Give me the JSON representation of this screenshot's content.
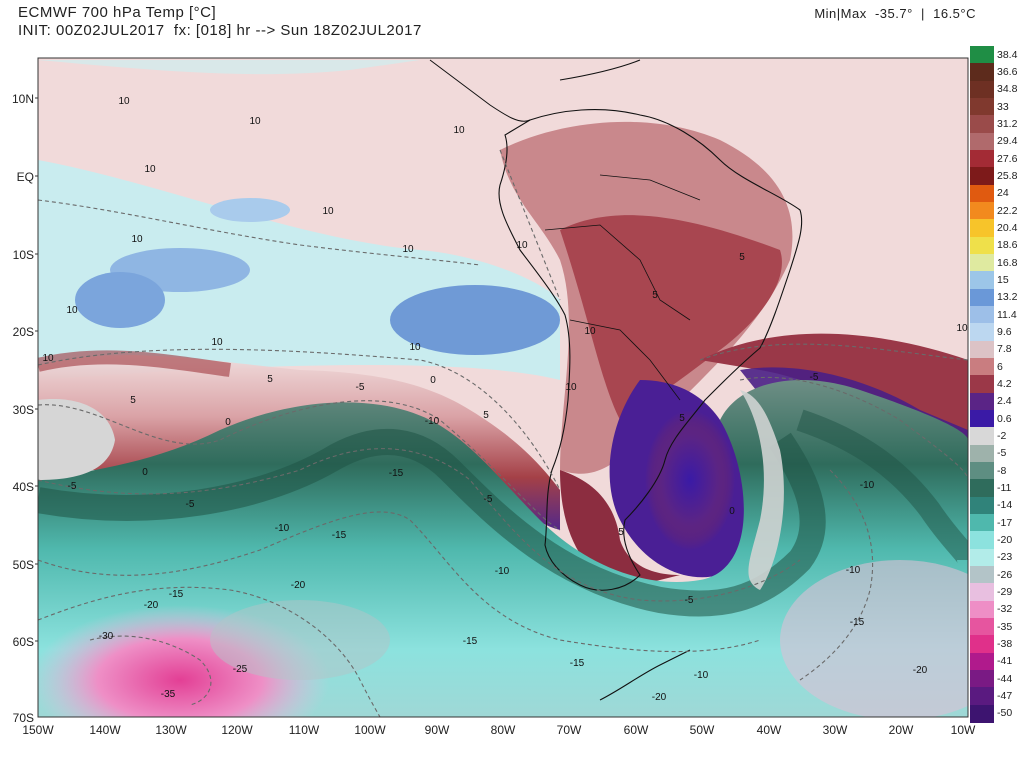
{
  "header": {
    "title_line1": "ECMWF 700 hPa Temp [°C]",
    "title_line2": "INIT: 00Z02JUL2017  fx: [018] hr --> Sun 18Z02JUL2017",
    "minmax": "Min|Max  -35.7°  |  16.5°C"
  },
  "lat_labels": [
    "10N",
    "EQ",
    "10S",
    "20S",
    "30S",
    "40S",
    "50S",
    "60S",
    "70S"
  ],
  "lon_labels": [
    "150W",
    "140W",
    "130W",
    "120W",
    "110W",
    "100W",
    "90W",
    "80W",
    "70W",
    "60W",
    "50W",
    "40W",
    "30W",
    "20W",
    "10W"
  ],
  "colorbar": {
    "labels": [
      "38.4",
      "36.6",
      "34.8",
      "33",
      "31.2",
      "29.4",
      "27.6",
      "25.8",
      "24",
      "22.2",
      "20.4",
      "18.6",
      "16.8",
      "15",
      "13.2",
      "11.4",
      "9.6",
      "7.8",
      "6",
      "4.2",
      "2.4",
      "0.6",
      "-2",
      "-5",
      "-8",
      "-11",
      "-14",
      "-17",
      "-20",
      "-23",
      "-26",
      "-29",
      "-32",
      "-35",
      "-38",
      "-41",
      "-44",
      "-47",
      "-50"
    ],
    "colors": [
      "#1f8e45",
      "#5d2b1c",
      "#6e3023",
      "#80392e",
      "#9a4b4a",
      "#b06a6c",
      "#a32b35",
      "#7d1a1a",
      "#e05a10",
      "#f28a1e",
      "#f7c42a",
      "#efe04a",
      "#dfeaa0",
      "#9cc6e8",
      "#6a98d8",
      "#9dbfe8",
      "#bcd7f0",
      "#dcc3c6",
      "#c97d80",
      "#9b3848",
      "#5a2486",
      "#3a1aa6",
      "#d8d8d8",
      "#9eb2ab",
      "#5e8e82",
      "#2f6c5c",
      "#30837a",
      "#4fb8ad",
      "#8ce2de",
      "#b2ece9",
      "#b3c4c8",
      "#e8bfe0",
      "#ee8ec6",
      "#e6559f",
      "#e0308a",
      "#b01a8c",
      "#7a1a84",
      "#5a1a80",
      "#3d1470"
    ]
  },
  "contour_labels": [
    "10",
    "10",
    "10",
    "10",
    "10",
    "10",
    "10",
    "10",
    "10",
    "10",
    "10",
    "10",
    "10",
    "10",
    "10",
    "5",
    "5",
    "5",
    "5",
    "5",
    "5",
    "5",
    "0",
    "0",
    "0",
    "0",
    "-5",
    "-5",
    "-5",
    "-5",
    "-5",
    "-5",
    "-10",
    "-10",
    "-10",
    "-10",
    "-10",
    "-10",
    "-15",
    "-15",
    "-15",
    "-15",
    "-15",
    "-15",
    "-20",
    "-20",
    "-20",
    "-20",
    "-25",
    "-30",
    "-35"
  ]
}
